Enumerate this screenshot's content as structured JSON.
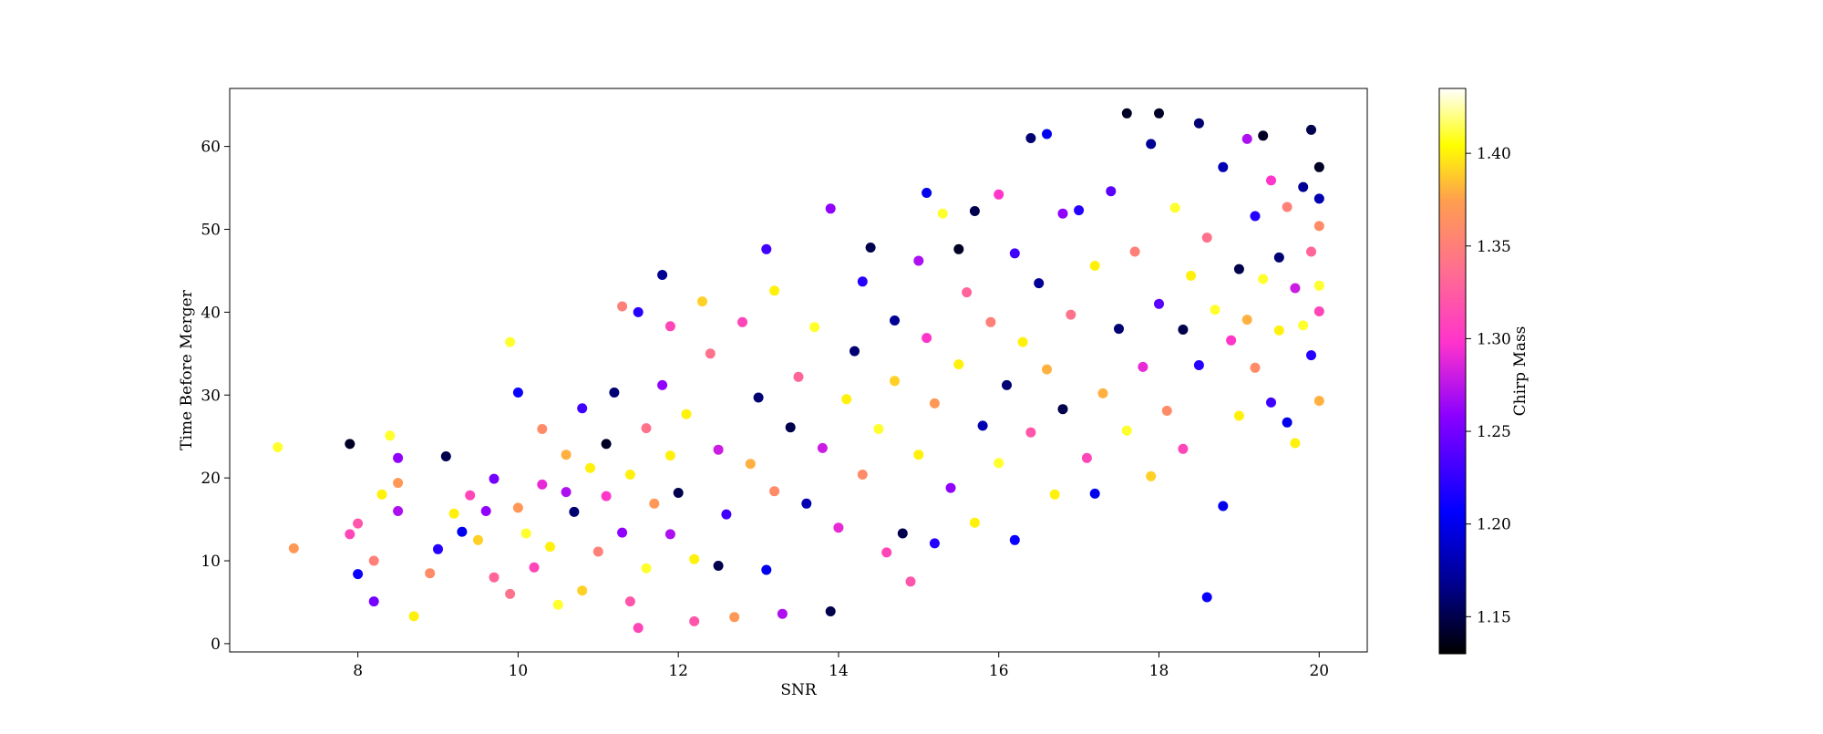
{
  "chart_data": {
    "type": "scatter",
    "title": "",
    "xlabel": "SNR",
    "ylabel": "Time Before Merger",
    "xlim": [
      6.4,
      20.6
    ],
    "ylim": [
      -1,
      67
    ],
    "xticks": [
      8,
      10,
      12,
      14,
      16,
      18,
      20
    ],
    "yticks": [
      0,
      10,
      20,
      30,
      40,
      50,
      60
    ],
    "grid": false,
    "colorbar": {
      "label": "Chirp Mass",
      "colormap": "gnuplot2",
      "range": [
        1.13,
        1.435
      ],
      "ticks": [
        1.15,
        1.2,
        1.25,
        1.3,
        1.35,
        1.4
      ],
      "tick_labels": [
        "1.15",
        "1.20",
        "1.25",
        "1.30",
        "1.35",
        "1.40"
      ]
    },
    "points": [
      [
        7.0,
        23.7,
        1.41
      ],
      [
        7.2,
        11.5,
        1.37
      ],
      [
        7.9,
        24.1,
        1.14
      ],
      [
        8.0,
        8.4,
        1.21
      ],
      [
        7.9,
        13.2,
        1.31
      ],
      [
        8.0,
        14.5,
        1.32
      ],
      [
        8.2,
        5.1,
        1.25
      ],
      [
        8.2,
        10.0,
        1.35
      ],
      [
        8.3,
        18.0,
        1.4
      ],
      [
        8.4,
        25.1,
        1.41
      ],
      [
        8.5,
        19.4,
        1.37
      ],
      [
        8.5,
        22.4,
        1.26
      ],
      [
        8.5,
        16.0,
        1.27
      ],
      [
        8.7,
        3.3,
        1.4
      ],
      [
        8.9,
        8.5,
        1.36
      ],
      [
        9.0,
        11.4,
        1.22
      ],
      [
        9.1,
        22.6,
        1.15
      ],
      [
        9.2,
        15.7,
        1.4
      ],
      [
        9.3,
        13.5,
        1.2
      ],
      [
        9.4,
        17.9,
        1.31
      ],
      [
        9.5,
        12.5,
        1.39
      ],
      [
        9.6,
        16.0,
        1.26
      ],
      [
        9.7,
        8.0,
        1.33
      ],
      [
        9.7,
        19.9,
        1.25
      ],
      [
        9.9,
        6.0,
        1.34
      ],
      [
        9.9,
        36.4,
        1.41
      ],
      [
        10.0,
        30.3,
        1.21
      ],
      [
        10.0,
        16.4,
        1.37
      ],
      [
        10.1,
        13.3,
        1.41
      ],
      [
        10.2,
        9.2,
        1.31
      ],
      [
        10.3,
        19.2,
        1.29
      ],
      [
        10.3,
        25.9,
        1.36
      ],
      [
        10.4,
        11.7,
        1.4
      ],
      [
        10.5,
        4.7,
        1.41
      ],
      [
        10.6,
        22.8,
        1.38
      ],
      [
        10.6,
        18.3,
        1.27
      ],
      [
        10.7,
        15.9,
        1.16
      ],
      [
        10.8,
        28.4,
        1.23
      ],
      [
        10.8,
        6.4,
        1.39
      ],
      [
        10.9,
        21.2,
        1.4
      ],
      [
        11.0,
        11.1,
        1.35
      ],
      [
        11.1,
        24.1,
        1.14
      ],
      [
        11.1,
        17.8,
        1.3
      ],
      [
        11.2,
        30.3,
        1.16
      ],
      [
        11.3,
        40.7,
        1.35
      ],
      [
        11.3,
        13.4,
        1.26
      ],
      [
        11.4,
        5.1,
        1.32
      ],
      [
        11.4,
        20.4,
        1.4
      ],
      [
        11.5,
        1.9,
        1.31
      ],
      [
        11.5,
        40.0,
        1.22
      ],
      [
        11.6,
        26.0,
        1.34
      ],
      [
        11.6,
        9.1,
        1.41
      ],
      [
        11.7,
        16.9,
        1.37
      ],
      [
        11.8,
        31.2,
        1.26
      ],
      [
        11.8,
        44.5,
        1.17
      ],
      [
        11.9,
        13.2,
        1.27
      ],
      [
        11.9,
        38.3,
        1.31
      ],
      [
        11.9,
        22.7,
        1.4
      ],
      [
        12.0,
        18.2,
        1.15
      ],
      [
        12.1,
        27.7,
        1.4
      ],
      [
        12.2,
        2.7,
        1.32
      ],
      [
        12.2,
        10.2,
        1.4
      ],
      [
        12.3,
        41.3,
        1.39
      ],
      [
        12.4,
        35.0,
        1.34
      ],
      [
        12.5,
        9.4,
        1.15
      ],
      [
        12.5,
        23.4,
        1.28
      ],
      [
        12.6,
        15.6,
        1.23
      ],
      [
        12.7,
        3.2,
        1.37
      ],
      [
        12.8,
        38.8,
        1.31
      ],
      [
        12.9,
        21.7,
        1.38
      ],
      [
        13.0,
        29.7,
        1.16
      ],
      [
        13.1,
        47.6,
        1.23
      ],
      [
        13.1,
        8.9,
        1.2
      ],
      [
        13.2,
        42.6,
        1.4
      ],
      [
        13.2,
        18.4,
        1.36
      ],
      [
        13.3,
        3.6,
        1.27
      ],
      [
        13.4,
        26.1,
        1.15
      ],
      [
        13.5,
        32.2,
        1.33
      ],
      [
        13.6,
        16.9,
        1.18
      ],
      [
        13.7,
        38.2,
        1.41
      ],
      [
        13.8,
        23.6,
        1.28
      ],
      [
        13.9,
        3.9,
        1.15
      ],
      [
        13.9,
        52.5,
        1.26
      ],
      [
        14.0,
        14.0,
        1.29
      ],
      [
        14.1,
        29.5,
        1.4
      ],
      [
        14.2,
        35.3,
        1.16
      ],
      [
        14.3,
        43.7,
        1.22
      ],
      [
        14.3,
        20.4,
        1.36
      ],
      [
        14.4,
        47.8,
        1.15
      ],
      [
        14.5,
        25.9,
        1.41
      ],
      [
        14.6,
        11.0,
        1.31
      ],
      [
        14.7,
        39.0,
        1.17
      ],
      [
        14.7,
        31.7,
        1.39
      ],
      [
        14.8,
        13.3,
        1.15
      ],
      [
        14.9,
        7.5,
        1.32
      ],
      [
        15.0,
        46.2,
        1.27
      ],
      [
        15.0,
        22.8,
        1.4
      ],
      [
        15.1,
        54.4,
        1.2
      ],
      [
        15.1,
        36.9,
        1.3
      ],
      [
        15.2,
        12.1,
        1.22
      ],
      [
        15.2,
        29.0,
        1.37
      ],
      [
        15.3,
        51.9,
        1.41
      ],
      [
        15.4,
        18.8,
        1.26
      ],
      [
        15.5,
        47.6,
        1.14
      ],
      [
        15.5,
        33.7,
        1.4
      ],
      [
        15.6,
        42.4,
        1.33
      ],
      [
        15.7,
        52.2,
        1.15
      ],
      [
        15.7,
        14.6,
        1.4
      ],
      [
        15.8,
        26.3,
        1.18
      ],
      [
        15.9,
        38.8,
        1.35
      ],
      [
        16.0,
        54.2,
        1.3
      ],
      [
        16.0,
        21.8,
        1.41
      ],
      [
        16.1,
        31.2,
        1.16
      ],
      [
        16.2,
        47.1,
        1.23
      ],
      [
        16.2,
        12.5,
        1.21
      ],
      [
        16.3,
        36.4,
        1.4
      ],
      [
        16.4,
        61.0,
        1.16
      ],
      [
        16.4,
        25.5,
        1.32
      ],
      [
        16.5,
        43.5,
        1.17
      ],
      [
        16.6,
        61.5,
        1.2
      ],
      [
        16.6,
        33.1,
        1.38
      ],
      [
        16.7,
        18.0,
        1.4
      ],
      [
        16.8,
        51.9,
        1.26
      ],
      [
        16.8,
        28.3,
        1.15
      ],
      [
        16.9,
        39.7,
        1.34
      ],
      [
        17.0,
        52.3,
        1.22
      ],
      [
        17.1,
        22.4,
        1.31
      ],
      [
        17.2,
        45.6,
        1.4
      ],
      [
        17.2,
        18.1,
        1.2
      ],
      [
        17.3,
        30.2,
        1.38
      ],
      [
        17.4,
        54.6,
        1.24
      ],
      [
        17.5,
        38.0,
        1.16
      ],
      [
        17.6,
        64.0,
        1.14
      ],
      [
        17.6,
        25.7,
        1.41
      ],
      [
        17.7,
        47.3,
        1.35
      ],
      [
        17.8,
        33.4,
        1.29
      ],
      [
        17.9,
        60.3,
        1.17
      ],
      [
        17.9,
        20.2,
        1.39
      ],
      [
        18.0,
        64.0,
        1.14
      ],
      [
        18.0,
        41.0,
        1.24
      ],
      [
        18.1,
        28.1,
        1.36
      ],
      [
        18.2,
        52.6,
        1.41
      ],
      [
        18.3,
        37.9,
        1.15
      ],
      [
        18.3,
        23.5,
        1.31
      ],
      [
        18.4,
        44.4,
        1.4
      ],
      [
        18.5,
        62.8,
        1.16
      ],
      [
        18.5,
        33.6,
        1.22
      ],
      [
        18.6,
        5.6,
        1.21
      ],
      [
        18.6,
        49.0,
        1.34
      ],
      [
        18.7,
        40.3,
        1.41
      ],
      [
        18.8,
        16.6,
        1.2
      ],
      [
        18.8,
        57.5,
        1.18
      ],
      [
        18.9,
        36.6,
        1.3
      ],
      [
        19.0,
        45.2,
        1.15
      ],
      [
        19.0,
        27.5,
        1.4
      ],
      [
        19.1,
        60.9,
        1.27
      ],
      [
        19.1,
        39.1,
        1.38
      ],
      [
        19.2,
        51.6,
        1.22
      ],
      [
        19.2,
        33.3,
        1.36
      ],
      [
        19.3,
        61.3,
        1.14
      ],
      [
        19.3,
        44.0,
        1.41
      ],
      [
        19.4,
        55.9,
        1.3
      ],
      [
        19.4,
        29.1,
        1.23
      ],
      [
        19.5,
        46.6,
        1.16
      ],
      [
        19.5,
        37.8,
        1.4
      ],
      [
        19.6,
        52.7,
        1.35
      ],
      [
        19.6,
        26.7,
        1.2
      ],
      [
        19.7,
        42.9,
        1.28
      ],
      [
        19.7,
        24.2,
        1.4
      ],
      [
        19.8,
        55.1,
        1.17
      ],
      [
        19.8,
        38.4,
        1.41
      ],
      [
        19.9,
        62.0,
        1.15
      ],
      [
        19.9,
        47.3,
        1.33
      ],
      [
        19.9,
        34.8,
        1.22
      ],
      [
        20.0,
        57.5,
        1.14
      ],
      [
        20.0,
        50.4,
        1.36
      ],
      [
        20.0,
        43.2,
        1.41
      ],
      [
        20.0,
        29.3,
        1.38
      ],
      [
        20.0,
        40.1,
        1.31
      ],
      [
        20.0,
        53.7,
        1.18
      ]
    ]
  }
}
